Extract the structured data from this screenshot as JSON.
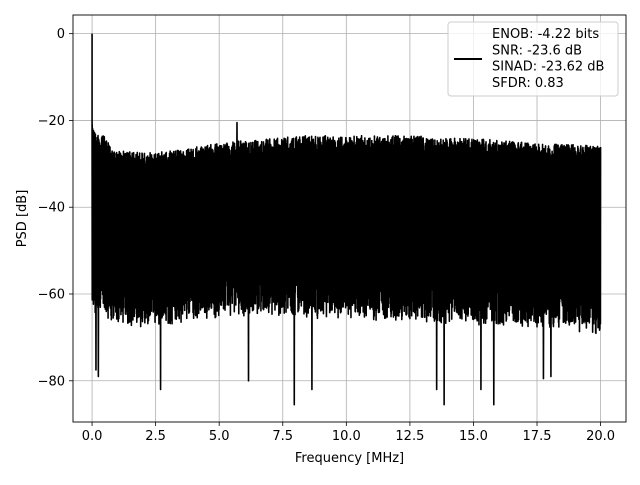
{
  "chart_data": {
    "type": "line",
    "xlabel": "Frequency [MHz]",
    "ylabel": "PSD [dB]",
    "xlim": [
      -0.75,
      21.0
    ],
    "ylim": [
      -89.5,
      4.3
    ],
    "xticks": [
      0.0,
      2.5,
      5.0,
      7.5,
      10.0,
      12.5,
      15.0,
      17.5,
      20.0
    ],
    "xtick_labels": [
      "0.0",
      "2.5",
      "5.0",
      "7.5",
      "10.0",
      "12.5",
      "15.0",
      "17.5",
      "20.0"
    ],
    "yticks": [
      0,
      -20,
      -40,
      -60,
      -80
    ],
    "ytick_labels": [
      "0",
      "−20",
      "−40",
      "−60",
      "−80"
    ],
    "grid": true,
    "legend_position": "top-right",
    "series": [
      {
        "name": "ENOB: -4.22 bits\nSNR: -23.6 dB\nSINAD: -23.62 dB\nSFDR: 0.83",
        "legend_lines": [
          "ENOB: -4.22 bits",
          "SNR: -23.6 dB",
          "SINAD: -23.62 dB",
          "SFDR: 0.83"
        ],
        "color": "#000000",
        "description_values": {
          "x_range": [
            0.0,
            20.0
          ],
          "peak": {
            "x": 0.0,
            "y": 0.0
          },
          "upper_envelope_db": [
            -21,
            -27,
            -27.5,
            -27,
            -26,
            -25,
            -24.5,
            -24,
            -23.5,
            -23.5,
            -23.5,
            -23.5,
            -23.5,
            -24,
            -24,
            -24.5,
            -25,
            -25.5,
            -25.5,
            -26
          ],
          "lower_envelope_db": [
            -65,
            -67,
            -68,
            -67,
            -66,
            -65.5,
            -65,
            -65,
            -65.5,
            -66,
            -66,
            -66.5,
            -66.5,
            -67,
            -67,
            -67.5,
            -68,
            -68,
            -68.5,
            -70
          ],
          "dips": [
            {
              "x": 0.15,
              "y": -77.5
            },
            {
              "x": 0.25,
              "y": -79.0
            },
            {
              "x": 2.7,
              "y": -82.0
            },
            {
              "x": 6.15,
              "y": -80.0
            },
            {
              "x": 7.95,
              "y": -85.5
            },
            {
              "x": 8.65,
              "y": -82.0
            },
            {
              "x": 13.55,
              "y": -82.0
            },
            {
              "x": 13.85,
              "y": -85.5
            },
            {
              "x": 15.3,
              "y": -82.0
            },
            {
              "x": 15.8,
              "y": -85.5
            },
            {
              "x": 17.75,
              "y": -79.5
            },
            {
              "x": 18.05,
              "y": -79.0
            }
          ],
          "spur": {
            "x": 5.7,
            "y": -20.5
          }
        }
      }
    ]
  }
}
